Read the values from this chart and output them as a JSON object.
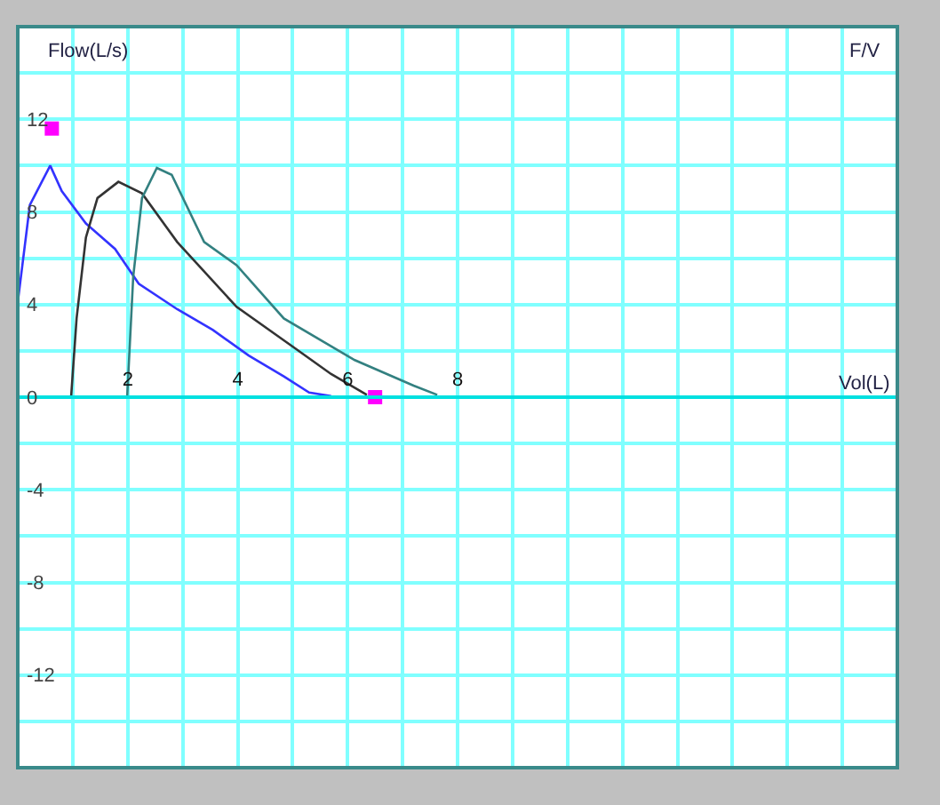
{
  "chart_data": {
    "type": "line",
    "xlabel": "Vol(L)",
    "ylabel": "Flow(L/s)",
    "annotations": [
      "F/V"
    ],
    "xlim": [
      0,
      16
    ],
    "xticks": [
      2,
      4,
      6,
      8
    ],
    "ylim": [
      -16,
      16
    ],
    "yticks": [
      -12,
      -8,
      -4,
      0,
      4,
      8,
      12
    ],
    "grid": true,
    "marker": "none",
    "line_style": "solid",
    "series": [
      {
        "color": "#3333ff",
        "x": [
          0,
          0,
          0.22,
          0.59,
          0.8,
          1.24,
          1.77,
          2.2,
          2.9,
          3.55,
          4.2,
          4.84,
          5.3,
          5.7
        ],
        "values": [
          0,
          4.1,
          8.3,
          10,
          8.9,
          7.5,
          6.4,
          4.9,
          3.8,
          2.9,
          1.8,
          0.9,
          0.2,
          0.05
        ]
      },
      {
        "color": "#333333",
        "x": [
          0.97,
          1.07,
          1.24,
          1.45,
          1.83,
          2.26,
          2.9,
          3.98,
          5.05,
          5.7,
          6.35
        ],
        "values": [
          0,
          3.4,
          6.9,
          8.6,
          9.3,
          8.8,
          6.7,
          3.9,
          2.1,
          1.0,
          0.1
        ]
      },
      {
        "color": "#338080",
        "x": [
          1.99,
          2.1,
          2.26,
          2.53,
          2.8,
          3.39,
          3.98,
          4.84,
          6.13,
          7.2,
          7.63
        ],
        "values": [
          0,
          5.2,
          8.6,
          9.9,
          9.6,
          6.7,
          5.7,
          3.4,
          1.6,
          0.5,
          0.1
        ]
      },
      {
        "type": "scatter",
        "marker": "square",
        "color": "#ff00ff",
        "x": [
          0.62,
          6.5
        ],
        "values": [
          11.6,
          0
        ]
      }
    ]
  }
}
